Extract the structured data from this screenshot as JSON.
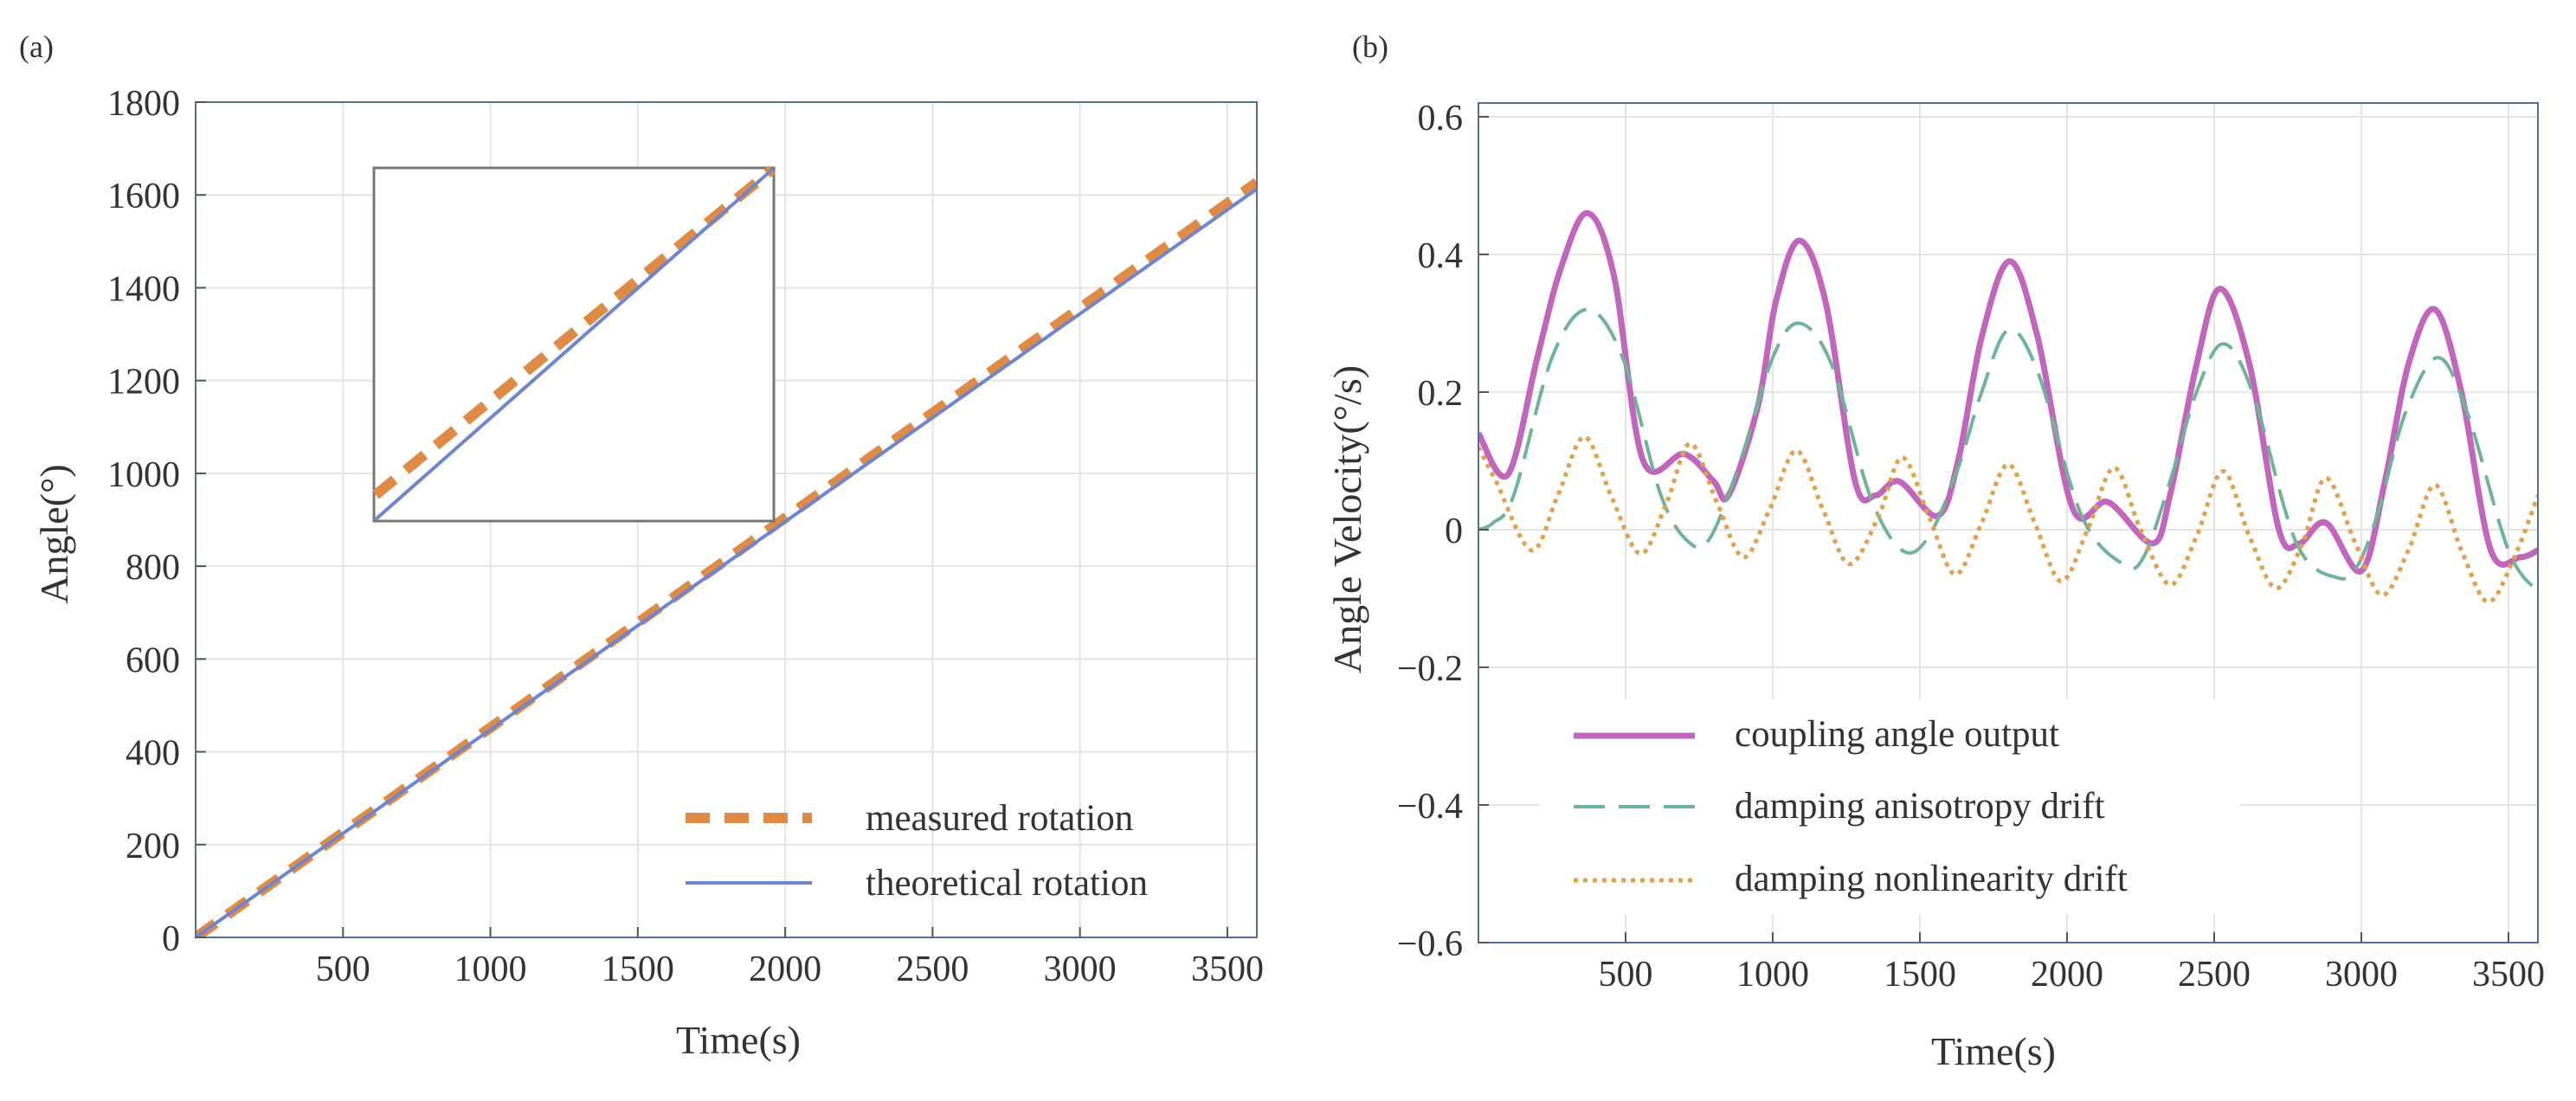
{
  "colors": {
    "measured": "#E08B45",
    "theoretical": "#6F86CF",
    "coupling": "#C266BD",
    "anisotropy": "#6FB497",
    "nonlinearity": "#E1A24E",
    "grid": "#E4E4E4",
    "frame": "#5A6E9E",
    "inset_frame": "#777777"
  },
  "chart_data": [
    {
      "panel_label": "(a)",
      "type": "line",
      "xlabel": "Time(s)",
      "ylabel": "Angle(°)",
      "xlim": [
        0,
        3600
      ],
      "ylim": [
        0,
        1800
      ],
      "xticks": [
        500,
        1000,
        1500,
        2000,
        2500,
        3000,
        3500
      ],
      "xtick_labels": [
        "500",
        "1000",
        "1500",
        "2000",
        "2500",
        "3000",
        "3500"
      ],
      "yticks": [
        0,
        200,
        400,
        600,
        800,
        1000,
        1200,
        1400,
        1600,
        1800
      ],
      "ytick_labels": [
        "0",
        "200",
        "400",
        "600",
        "800",
        "1000",
        "1200",
        "1400",
        "1600",
        "1800"
      ],
      "legend_position": "bottom-right",
      "series": [
        {
          "name": "measured rotation",
          "style": "dashed",
          "x": [
            0,
            500,
            1000,
            1500,
            2000,
            2500,
            3000,
            3500,
            3600
          ],
          "y": [
            0,
            226,
            452,
            678,
            904,
            1130,
            1356,
            1582,
            1627
          ]
        },
        {
          "name": "theoretical rotation",
          "style": "solid",
          "x": [
            0,
            500,
            1000,
            1500,
            2000,
            2500,
            3000,
            3500,
            3600
          ],
          "y": [
            0,
            224,
            448,
            672,
            896,
            1120,
            1344,
            1568,
            1613
          ]
        }
      ],
      "inset": {
        "description": "zoomed view",
        "series": [
          {
            "name": "measured rotation",
            "x": [
              0,
              1
            ],
            "y": [
              0.07,
              1.0
            ]
          },
          {
            "name": "theoretical rotation",
            "x": [
              0,
              1
            ],
            "y": [
              0.0,
              1.0
            ]
          }
        ]
      }
    },
    {
      "panel_label": "(b)",
      "type": "line",
      "xlabel": "Time(s)",
      "ylabel": "Angle Velocity(°/s)",
      "xlim": [
        0,
        3600
      ],
      "ylim": [
        -0.6,
        0.62
      ],
      "xticks": [
        500,
        1000,
        1500,
        2000,
        2500,
        3000,
        3500
      ],
      "xtick_labels": [
        "500",
        "1000",
        "1500",
        "2000",
        "2500",
        "3000",
        "3500"
      ],
      "yticks": [
        -0.6,
        -0.4,
        -0.2,
        0,
        0.2,
        0.4,
        0.6
      ],
      "ytick_labels": [
        "−0.6",
        "−0.4",
        "−0.2",
        "0",
        "0.2",
        "0.4",
        "0.6"
      ],
      "legend_position": "bottom-left",
      "series": [
        {
          "name": "coupling angle output",
          "style": "solid",
          "x": [
            0,
            100,
            200,
            280,
            370,
            460,
            560,
            700,
            800,
            850,
            950,
            1010,
            1090,
            1180,
            1280,
            1350,
            1430,
            1560,
            1630,
            1710,
            1805,
            1900,
            2020,
            2140,
            2290,
            2350,
            2440,
            2520,
            2620,
            2720,
            2790,
            2880,
            3000,
            3080,
            3160,
            3250,
            3340,
            3440,
            3540,
            3600
          ],
          "y": [
            0.14,
            0.08,
            0.25,
            0.38,
            0.46,
            0.37,
            0.1,
            0.11,
            0.07,
            0.05,
            0.18,
            0.33,
            0.42,
            0.33,
            0.07,
            0.05,
            0.07,
            0.02,
            0.1,
            0.28,
            0.39,
            0.28,
            0.03,
            0.04,
            -0.02,
            0.05,
            0.24,
            0.35,
            0.24,
            0.0,
            -0.02,
            0.01,
            -0.06,
            0.07,
            0.24,
            0.32,
            0.2,
            -0.03,
            -0.04,
            -0.03
          ]
        },
        {
          "name": "damping anisotropy drift",
          "style": "dashed",
          "x": [
            0,
            50,
            120,
            250,
            370,
            490,
            620,
            720,
            790,
            890,
            1000,
            1090,
            1200,
            1330,
            1440,
            1530,
            1630,
            1710,
            1800,
            1900,
            2050,
            2190,
            2260,
            2350,
            2440,
            2530,
            2630,
            2780,
            2920,
            2990,
            3060,
            3150,
            3260,
            3360,
            3500,
            3600
          ],
          "y": [
            0.0,
            0.01,
            0.05,
            0.25,
            0.32,
            0.25,
            0.05,
            -0.02,
            -0.01,
            0.1,
            0.25,
            0.3,
            0.24,
            0.05,
            -0.03,
            -0.01,
            0.09,
            0.2,
            0.29,
            0.23,
            0.02,
            -0.05,
            -0.04,
            0.07,
            0.2,
            0.27,
            0.2,
            -0.02,
            -0.07,
            -0.05,
            0.03,
            0.17,
            0.25,
            0.17,
            -0.03,
            -0.09
          ]
        },
        {
          "name": "damping nonlinearity drift",
          "style": "dotted",
          "x": [
            0,
            60,
            180,
            270,
            360,
            450,
            550,
            640,
            720,
            810,
            900,
            990,
            1080,
            1170,
            1260,
            1360,
            1440,
            1530,
            1620,
            1710,
            1800,
            1890,
            1980,
            2070,
            2160,
            2250,
            2350,
            2440,
            2530,
            2620,
            2710,
            2800,
            2880,
            2980,
            3070,
            3160,
            3250,
            3340,
            3430,
            3520,
            3600
          ],
          "y": [
            0.12,
            0.07,
            -0.03,
            0.05,
            0.135,
            0.05,
            -0.035,
            0.04,
            0.125,
            0.04,
            -0.04,
            0.03,
            0.115,
            0.03,
            -0.05,
            0.02,
            0.105,
            0.02,
            -0.065,
            0.01,
            0.095,
            0.01,
            -0.075,
            0.0,
            0.09,
            0.0,
            -0.08,
            -0.01,
            0.085,
            -0.01,
            -0.085,
            -0.02,
            0.075,
            -0.02,
            -0.095,
            -0.03,
            0.065,
            -0.03,
            -0.105,
            -0.04,
            0.05
          ]
        }
      ]
    }
  ]
}
